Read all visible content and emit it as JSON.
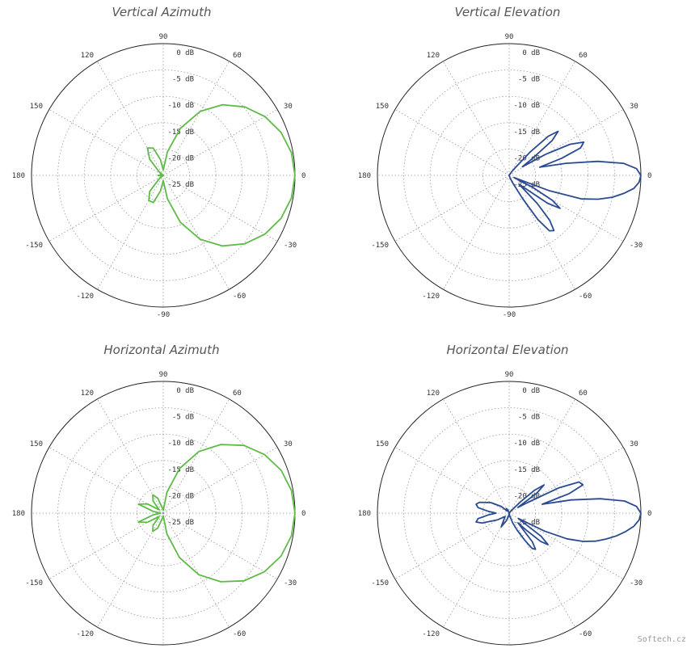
{
  "watermark": "Softech.cz",
  "colors": {
    "green": "#5dbb46",
    "blue": "#2a4a92",
    "grid": "#999999",
    "circle": "#222222"
  },
  "chart_data": [
    {
      "type": "polar",
      "title": "Vertical Azimuth",
      "color": "#5dbb46",
      "angle_ticks": [
        "0",
        "30",
        "60",
        "90",
        "120",
        "150",
        "180",
        "-150",
        "-120",
        "-90",
        "-60",
        "-30"
      ],
      "radial_ticks": [
        "0 dB",
        "-5 dB",
        "-10 dB",
        "-15 dB",
        "-20 dB",
        "-25 dB"
      ],
      "rlim": [
        -25,
        0
      ],
      "grid": true,
      "series": [
        {
          "angle_deg": [
            0,
            10,
            20,
            30,
            40,
            50,
            60,
            70,
            80,
            90,
            100,
            110,
            120,
            130,
            140,
            150,
            160,
            170,
            180,
            190,
            200,
            210,
            220,
            230,
            240,
            250,
            260,
            270,
            280,
            290,
            300,
            310,
            320,
            330,
            340,
            350
          ],
          "gain_db": [
            0,
            -0.3,
            -1.2,
            -2.7,
            -4.8,
            -7.5,
            -11,
            -15.5,
            -20.5,
            -24,
            -22,
            -19.5,
            -19,
            -21,
            -24,
            -25,
            -25,
            -24.5,
            -24,
            -24.5,
            -25,
            -25,
            -24,
            -21,
            -19.5,
            -19.5,
            -22,
            -24,
            -20.5,
            -15.5,
            -11,
            -7.5,
            -4.8,
            -2.7,
            -1.2,
            -0.3
          ]
        }
      ]
    },
    {
      "type": "polar",
      "title": "Vertical Elevation",
      "color": "#2a4a92",
      "angle_ticks": [
        "0",
        "30",
        "60",
        "90",
        "120",
        "150",
        "180",
        "-150",
        "-120",
        "-90",
        "-60",
        "-30"
      ],
      "radial_ticks": [
        "0 dB",
        "-5 dB",
        "-10 dB",
        "-15 dB",
        "-20 dB",
        "-25 dB"
      ],
      "rlim": [
        -25,
        0
      ],
      "grid": true,
      "series": [
        {
          "angle_deg": [
            0,
            3,
            6,
            9,
            12,
            15,
            18,
            21,
            24,
            27,
            30,
            33,
            36,
            39,
            42,
            45,
            48,
            51,
            54,
            57,
            60,
            70,
            80,
            90,
            100,
            120,
            150,
            180,
            210,
            240,
            260,
            270,
            280,
            290,
            295,
            300,
            303,
            306,
            309,
            312,
            315,
            318,
            321,
            324,
            327,
            330,
            333,
            336,
            339,
            342,
            345,
            348,
            351,
            354,
            357
          ],
          "gain_db": [
            0,
            -0.8,
            -3.2,
            -8,
            -14,
            -19,
            -14.5,
            -10.5,
            -9.5,
            -12,
            -17,
            -22,
            -19.5,
            -14.5,
            -12.5,
            -14.5,
            -19,
            -23,
            -24,
            -24.5,
            -25,
            -25,
            -25,
            -25,
            -25,
            -25,
            -25,
            -25,
            -25,
            -25,
            -25,
            -25,
            -25,
            -24.5,
            -23.5,
            -20,
            -15,
            -12,
            -11.5,
            -13.5,
            -17.5,
            -22.5,
            -21,
            -16,
            -13.5,
            -15.5,
            -20,
            -24,
            -17,
            -10.5,
            -7.5,
            -5,
            -3,
            -1.2,
            -0.3
          ]
        }
      ]
    },
    {
      "type": "polar",
      "title": "Horizontal Azimuth",
      "color": "#5dbb46",
      "angle_ticks": [
        "0",
        "30",
        "60",
        "90",
        "120",
        "150",
        "180",
        "-150",
        "-120",
        "-90",
        "-60",
        "-30"
      ],
      "radial_ticks": [
        "0 dB",
        "-5 dB",
        "-10 dB",
        "-15 dB",
        "-20 dB",
        "-25 dB"
      ],
      "rlim": [
        -25,
        0
      ],
      "grid": true,
      "series": [
        {
          "angle_deg": [
            0,
            10,
            20,
            30,
            40,
            50,
            60,
            70,
            80,
            90,
            100,
            110,
            120,
            130,
            140,
            150,
            160,
            170,
            180,
            190,
            200,
            210,
            220,
            230,
            240,
            250,
            260,
            270,
            280,
            290,
            300,
            310,
            320,
            330,
            340,
            350
          ],
          "gain_db": [
            0,
            -0.3,
            -1.2,
            -2.8,
            -5,
            -8,
            -11.5,
            -16,
            -21,
            -24.5,
            -24,
            -22,
            -21,
            -22,
            -24,
            -21.5,
            -20,
            -23,
            -24.5,
            -23,
            -20,
            -21.5,
            -24,
            -22,
            -21,
            -22,
            -24,
            -24.5,
            -21,
            -16,
            -11.5,
            -8,
            -5,
            -2.8,
            -1.2,
            -0.3
          ]
        }
      ]
    },
    {
      "type": "polar",
      "title": "Horizontal Elevation",
      "color": "#2a4a92",
      "angle_ticks": [
        "0",
        "30",
        "60",
        "90",
        "120",
        "150",
        "180",
        "-150",
        "-120",
        "-90",
        "-60",
        "-30"
      ],
      "radial_ticks": [
        "0 dB",
        "-5 dB",
        "-10 dB",
        "-15 dB",
        "-20 dB",
        "-25 dB"
      ],
      "rlim": [
        -25,
        0
      ],
      "grid": true,
      "series": [
        {
          "angle_deg": [
            0,
            3,
            6,
            9,
            12,
            15,
            18,
            21,
            24,
            27,
            30,
            33,
            36,
            39,
            42,
            45,
            48,
            51,
            54,
            57,
            60,
            70,
            80,
            90,
            100,
            110,
            120,
            130,
            140,
            150,
            160,
            165,
            170,
            175,
            180,
            185,
            190,
            195,
            200,
            210,
            220,
            230,
            240,
            250,
            260,
            270,
            280,
            290,
            295,
            300,
            303,
            306,
            309,
            312,
            315,
            318,
            321,
            324,
            327,
            330,
            333,
            336,
            339,
            342,
            345,
            348,
            351,
            354,
            357
          ],
          "gain_db": [
            0,
            -0.8,
            -3,
            -7.5,
            -13,
            -18.5,
            -13,
            -10,
            -10.5,
            -14.5,
            -21,
            -23,
            -18.5,
            -16.5,
            -18.5,
            -22,
            -24,
            -24.5,
            -25,
            -25,
            -25,
            -25,
            -25,
            -25,
            -25,
            -24.5,
            -24,
            -24.5,
            -23,
            -21,
            -19,
            -18.5,
            -19,
            -21,
            -22.5,
            -21,
            -19,
            -18.5,
            -19.5,
            -22.5,
            -24,
            -23.5,
            -22,
            -23.5,
            -24.5,
            -25,
            -24.5,
            -23,
            -21.5,
            -19,
            -17,
            -16.5,
            -18,
            -22.5,
            -20.5,
            -17,
            -15.5,
            -17.5,
            -22,
            -23,
            -17.5,
            -13,
            -10,
            -7.8,
            -6,
            -4.2,
            -2.6,
            -1.2,
            -0.3
          ]
        }
      ]
    }
  ]
}
